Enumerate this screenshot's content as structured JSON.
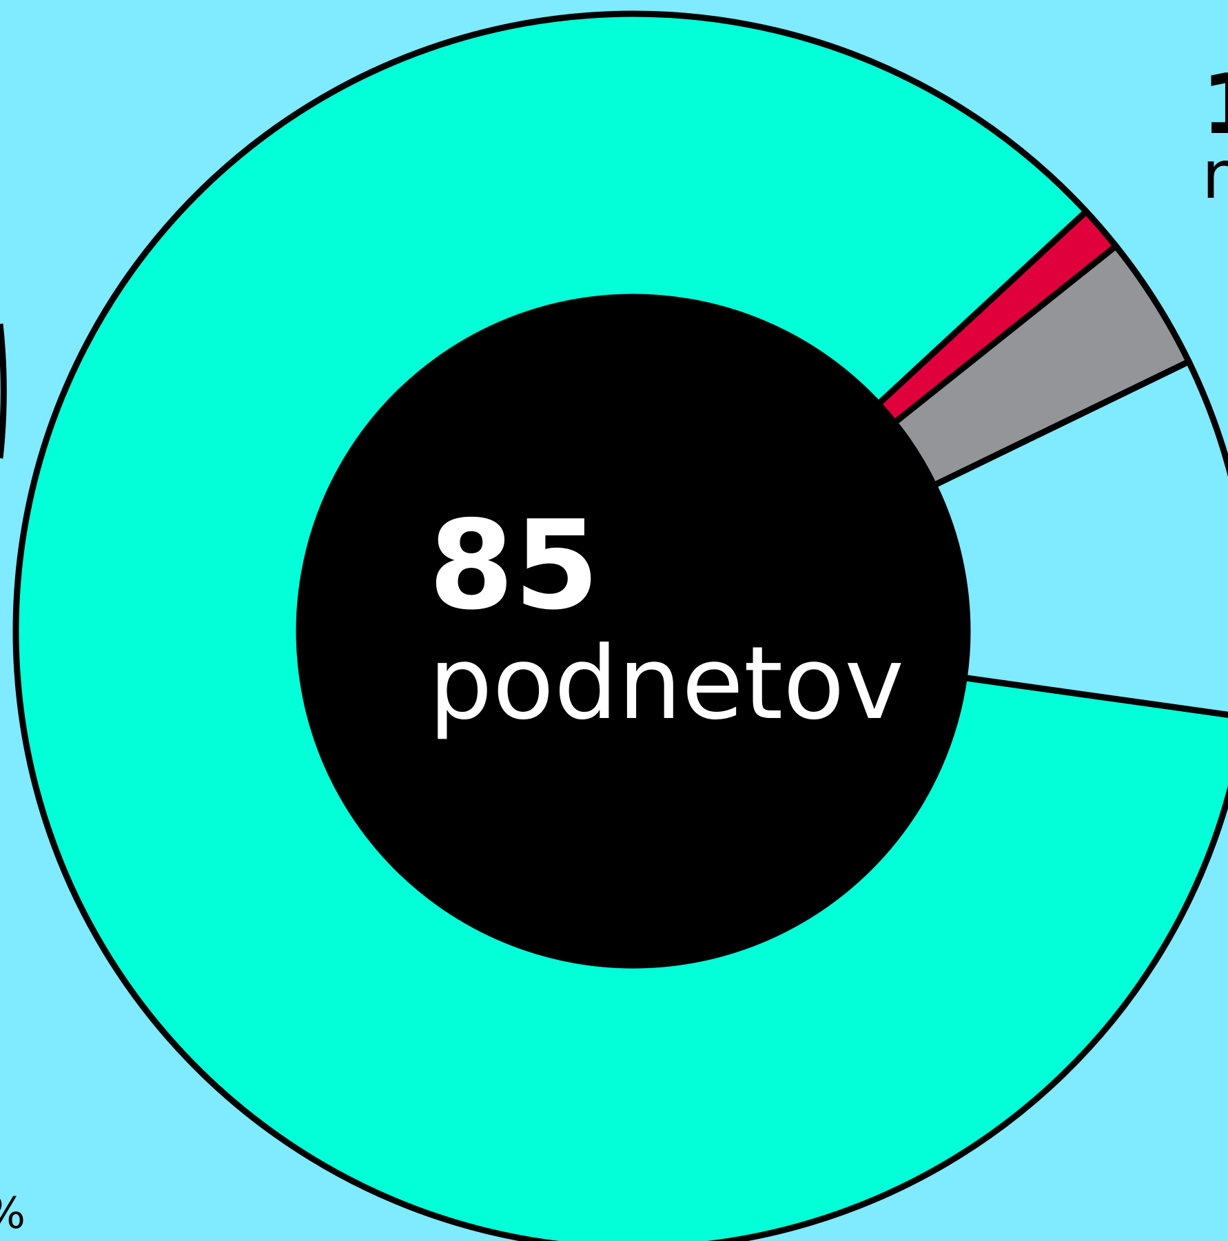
{
  "chart_data": {
    "type": "donut",
    "center_value": "85",
    "center_label": "podnetov",
    "categories": [
      null,
      null,
      null,
      null
    ],
    "values": [
      73,
      1,
      3,
      8
    ],
    "colors": [
      "#03ffd8",
      "#e0003c",
      "#939598",
      "#80eaff"
    ],
    "label_fragments": [
      "1",
      "n",
      "%"
    ]
  }
}
